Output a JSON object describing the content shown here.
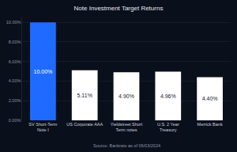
{
  "chart_data": {
    "type": "bar",
    "title": "Note Investment Target Returns",
    "categories": [
      "SV Short-Term Note I",
      "US Corporate AAA",
      "Yieldstreet Short Term notes",
      "U.S. 2 Year Treasury",
      "Merrick Bank"
    ],
    "values": [
      10.0,
      5.11,
      4.9,
      4.96,
      4.4
    ],
    "value_labels": [
      "10.00%",
      "5.11%",
      "4.90%",
      "4.96%",
      "4.40%"
    ],
    "colors": [
      "#1f6bff",
      "#ffffff",
      "#ffffff",
      "#ffffff",
      "#ffffff"
    ],
    "ylim": [
      0,
      10.5
    ],
    "yticks": [
      {
        "value": 0,
        "label": "0.00%"
      },
      {
        "value": 2,
        "label": "2.00%"
      },
      {
        "value": 4,
        "label": "4.00%"
      },
      {
        "value": 6,
        "label": "6.00%"
      },
      {
        "value": 8,
        "label": "8.00%"
      },
      {
        "value": 10,
        "label": "10.00%"
      }
    ],
    "grid": true,
    "data_labels": true,
    "annotations": [
      "Source: Bankrate as of 06/03/2024"
    ]
  }
}
